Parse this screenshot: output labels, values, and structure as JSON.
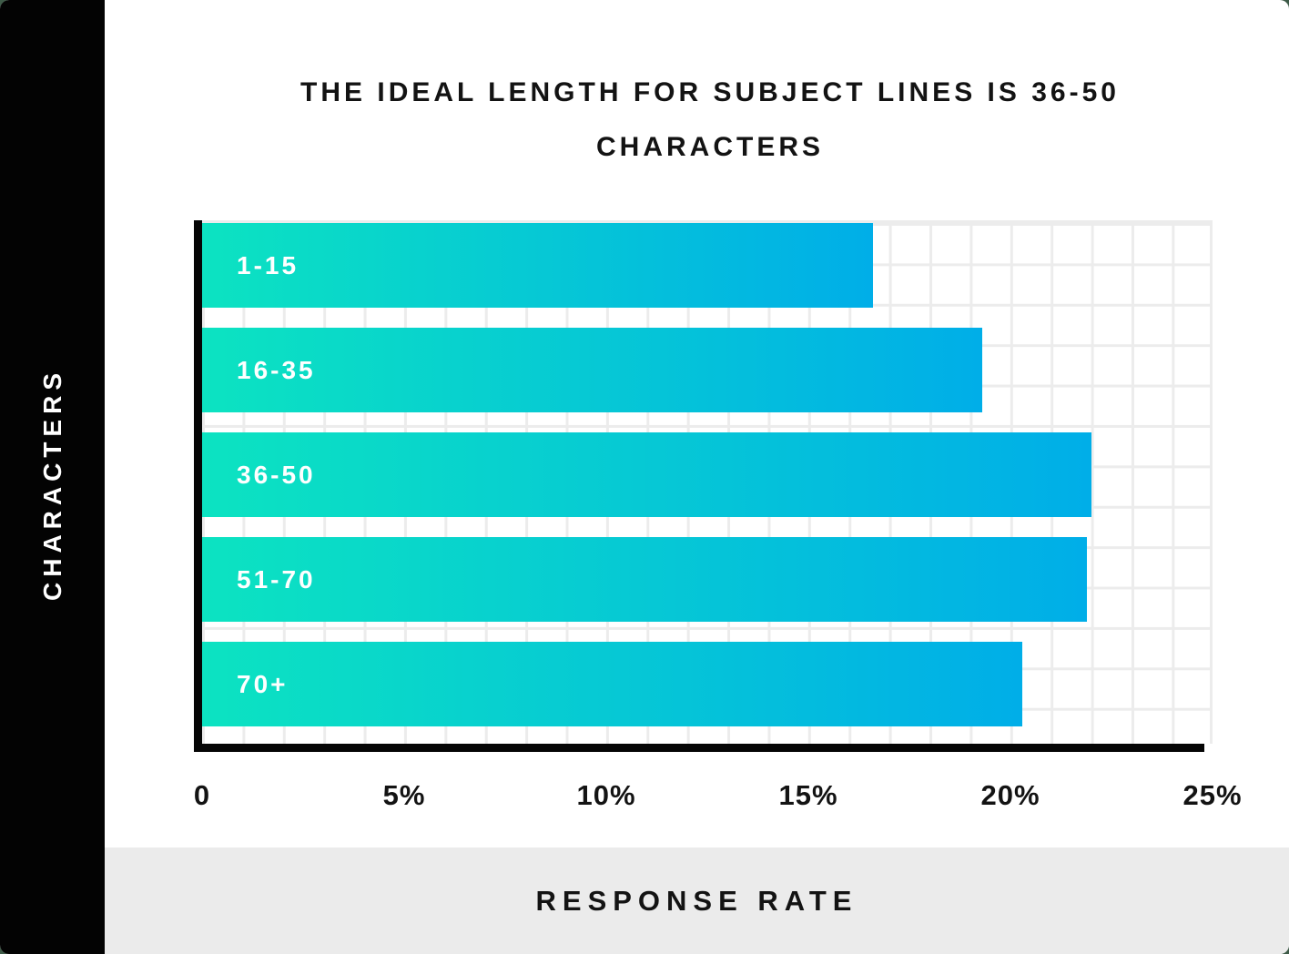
{
  "sidebar": {
    "label": "CHARACTERS"
  },
  "footer": {
    "label": "RESPONSE RATE"
  },
  "title": {
    "line1": "THE IDEAL LENGTH FOR SUBJECT LINES IS 36-50",
    "line2": "CHARACTERS"
  },
  "colors": {
    "bar_gradient_start": "#0CE3C1",
    "bar_gradient_end": "#00AEE8",
    "axis": "#050505",
    "grid": "#ECECEC",
    "panel_black": "#030303",
    "footer_bg": "#EBEBEB",
    "ink": "#131313",
    "bar_label": "#FFFFFF"
  },
  "chart_data": {
    "type": "bar",
    "orientation": "horizontal",
    "title": "THE IDEAL LENGTH FOR SUBJECT LINES IS 36-50 CHARACTERS",
    "xlabel": "RESPONSE RATE",
    "ylabel": "CHARACTERS",
    "categories": [
      "1-15",
      "16-35",
      "36-50",
      "51-70",
      "70+"
    ],
    "values": [
      16.6,
      19.3,
      22.0,
      21.9,
      20.3
    ],
    "unit": "%",
    "xlim": [
      0,
      25
    ],
    "x_tick_labels": [
      "0",
      "5%",
      "10%",
      "15%",
      "20%",
      "25%"
    ],
    "grid": true,
    "legend": false
  }
}
